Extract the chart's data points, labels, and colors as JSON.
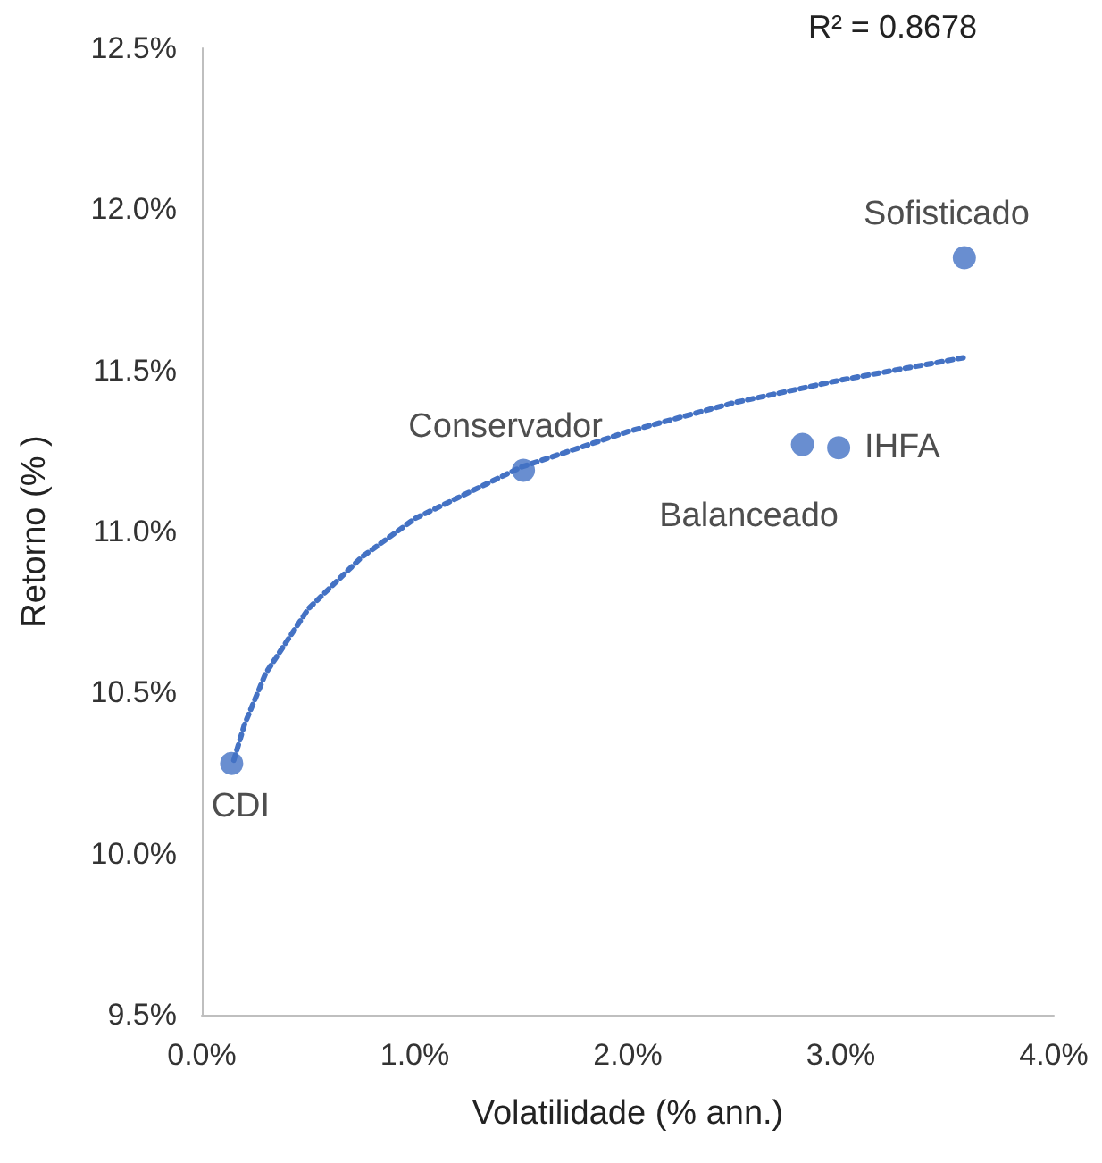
{
  "chart_data": {
    "type": "scatter",
    "xlabel": "Volatilidade (% ann.)",
    "ylabel": "Retorno (% )",
    "series": [
      {
        "type": "scatter",
        "color": "#4472c4",
        "marker": "circle",
        "x": [
          0.14,
          1.51,
          2.82,
          2.99,
          3.58
        ],
        "values": [
          10.28,
          11.19,
          11.27,
          11.26,
          11.85
        ]
      },
      {
        "type": "line",
        "color": "#4472c4",
        "line_style": "dotted",
        "marker": "none",
        "x": [
          0.15,
          0.2,
          0.3,
          0.5,
          0.75,
          1.0,
          1.5,
          2.0,
          2.5,
          3.0,
          3.58
        ],
        "values": [
          10.29,
          10.4,
          10.56,
          10.76,
          10.92,
          11.04,
          11.2,
          11.31,
          11.4,
          11.47,
          11.54
        ]
      }
    ],
    "annotations": [
      {
        "text": "CDI",
        "x": 0.14,
        "y": 10.28
      },
      {
        "text": "Conservador",
        "x": 1.51,
        "y": 11.19
      },
      {
        "text": "Balanceado",
        "x": 2.82,
        "y": 11.27
      },
      {
        "text": "IHFA",
        "x": 2.99,
        "y": 11.26
      },
      {
        "text": "Sofisticado",
        "x": 3.58,
        "y": 11.85
      },
      "R² = 0.8678"
    ],
    "xlim": [
      0,
      4
    ],
    "xticks": [
      {
        "value": 0,
        "label": "0.0%"
      },
      {
        "value": 1,
        "label": "1.0%"
      },
      {
        "value": 2,
        "label": "2.0%"
      },
      {
        "value": 3,
        "label": "3.0%"
      },
      {
        "value": 4,
        "label": "4.0%"
      }
    ],
    "ylim": [
      9.5,
      12.5
    ],
    "yticks": [
      {
        "value": 9.5,
        "label": "9.5%"
      },
      {
        "value": 10,
        "label": "10.0%"
      },
      {
        "value": 10.5,
        "label": "10.5%"
      },
      {
        "value": 11,
        "label": "11.0%"
      },
      {
        "value": 11.5,
        "label": "11.5%"
      },
      {
        "value": 12,
        "label": "12.0%"
      },
      {
        "value": 12.5,
        "label": "12.5%"
      }
    ],
    "grid": false
  }
}
